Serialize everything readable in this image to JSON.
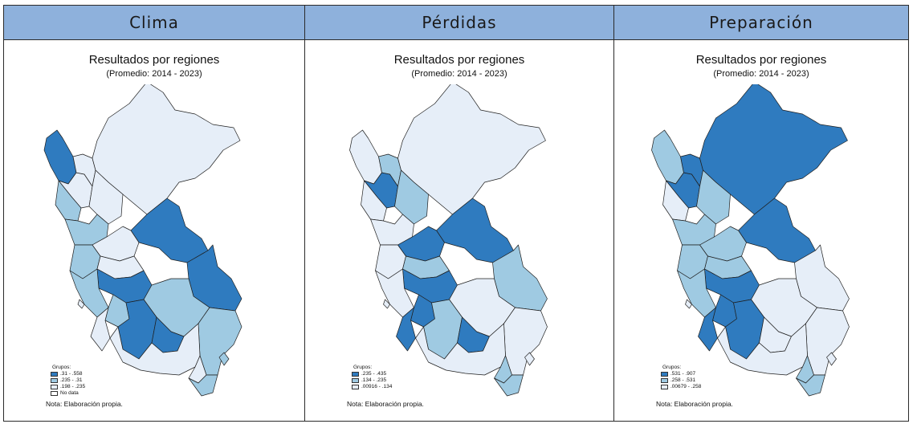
{
  "colors": {
    "c1": "#2f7bbf",
    "c2": "#9fcae2",
    "c3": "#e6eef8",
    "c4": "#ffffff"
  },
  "panels": [
    {
      "header": "Clima",
      "title": "Resultados por regiones",
      "subtitle": "(Promedio: 2014 - 2023)",
      "legend": {
        "title": "Grupos:",
        "items": [
          {
            "label": ".31 - .558",
            "color": "c1"
          },
          {
            "label": ".235 - .31",
            "color": "c2"
          },
          {
            "label": ".198 - .235",
            "color": "c3"
          },
          {
            "label": "No data",
            "color": "c4"
          }
        ]
      },
      "note": "Nota: Elaboración propia.",
      "regions": [
        "c1",
        "c3",
        "c3",
        "c3",
        "c3",
        "c2",
        "c2",
        "c1",
        "c2",
        "c3",
        "c3",
        "c1",
        "c1",
        "c2",
        "c2",
        "c2",
        "c3",
        "c1",
        "c2",
        "c1",
        "c3",
        "c3",
        "c2",
        "c3",
        "c2"
      ]
    },
    {
      "header": "Pérdidas",
      "title": "Resultados por regiones",
      "subtitle": "(Promedio: 2014 - 2023)",
      "legend": {
        "title": "Grupos:",
        "items": [
          {
            "label": ".235 - .435",
            "color": "c1"
          },
          {
            "label": ".134 - .235",
            "color": "c2"
          },
          {
            "label": ".00916 - .134",
            "color": "c3"
          }
        ]
      },
      "note": "Nota: Elaboración propia.",
      "regions": [
        "c3",
        "c1",
        "c2",
        "c3",
        "c2",
        "c3",
        "c3",
        "c1",
        "c3",
        "c1",
        "c2",
        "c2",
        "c1",
        "c3",
        "c3",
        "c1",
        "c1",
        "c2",
        "c3",
        "c1",
        "c3",
        "c2",
        "c2",
        "c3",
        "c3"
      ]
    },
    {
      "header": "Preparación",
      "title": "Resultados por regiones",
      "subtitle": "(Promedio: 2014 - 2023)",
      "legend": {
        "title": "Grupos:",
        "items": [
          {
            "label": ".531 - .907",
            "color": "c1"
          },
          {
            "label": ".258 - .531",
            "color": "c2"
          },
          {
            "label": ".00679 - .258",
            "color": "c3"
          }
        ]
      },
      "note": "Nota: Elaboración propia.",
      "regions": [
        "c2",
        "c1",
        "c1",
        "c1",
        "c2",
        "c3",
        "c2",
        "c1",
        "c2",
        "c2",
        "c2",
        "c3",
        "c1",
        "c2",
        "c3",
        "c1",
        "c1",
        "c1",
        "c3",
        "c3",
        "c3",
        "c2",
        "c2",
        "c3",
        "c3"
      ]
    }
  ]
}
